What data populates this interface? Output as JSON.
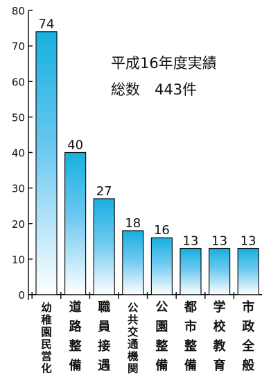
{
  "chart_data": {
    "type": "bar",
    "categories": [
      "幼稚園民営化",
      "道路整備",
      "職員接遇",
      "公共交通機関",
      "公園整備",
      "都市整備",
      "学校教育",
      "市政全般"
    ],
    "values": [
      74,
      40,
      27,
      18,
      16,
      13,
      13,
      13
    ],
    "data_labels": [
      "74",
      "40",
      "27",
      "18",
      "16",
      "13",
      "13",
      "13"
    ],
    "ylim": [
      0,
      80
    ],
    "yticks": [
      0,
      10,
      20,
      30,
      40,
      50,
      60,
      70,
      80
    ],
    "annotations": [
      "平成16年度実績",
      "総数　443件"
    ],
    "grid": false,
    "legend": "none",
    "colors": {
      "bar_top": "#17b0df",
      "bar_bottom": "#ffffff",
      "bar_edge": "#111111",
      "axis": "#111111"
    }
  }
}
